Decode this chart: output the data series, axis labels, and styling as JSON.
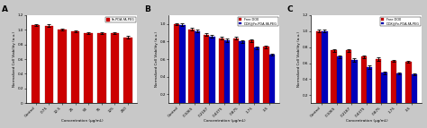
{
  "panel_A": {
    "label": "A",
    "categories": [
      "Control",
      "0.75",
      "12.5",
      "25",
      "50",
      "75",
      "125",
      "250"
    ],
    "values_red": [
      1.065,
      1.055,
      1.0,
      0.975,
      0.95,
      0.955,
      0.955,
      0.895
    ],
    "errors_red": [
      0.018,
      0.018,
      0.013,
      0.013,
      0.013,
      0.013,
      0.018,
      0.018
    ],
    "legend": [
      "Fe-PDA-FA-PEG"
    ],
    "ylabel": "Normalized Cell Viability (a.u.)",
    "xlabel": "Concentration (μg/mL)",
    "ylim": [
      0,
      1.2
    ],
    "yticks": [
      0.0,
      0.2,
      0.4,
      0.6,
      0.8,
      1.0,
      1.2
    ],
    "bar_color_red": "#CC0000"
  },
  "panel_B": {
    "label": "B",
    "categories": [
      "Control",
      "0.1065",
      "0.2187",
      "0.4375",
      "0.875",
      "1.75",
      "3.5"
    ],
    "values_red": [
      1.0,
      0.94,
      0.88,
      0.84,
      0.84,
      0.81,
      0.74
    ],
    "values_blue": [
      0.99,
      0.92,
      0.86,
      0.81,
      0.8,
      0.73,
      0.65
    ],
    "errors_red": [
      0.013,
      0.013,
      0.013,
      0.02,
      0.013,
      0.013,
      0.013
    ],
    "errors_blue": [
      0.013,
      0.013,
      0.013,
      0.02,
      0.013,
      0.013,
      0.013
    ],
    "legend": [
      "Free DOX",
      "DOX@Fe-PDA-FA-PEG"
    ],
    "ylabel": "Normalized Cell Viability (a.u.)",
    "xlabel": "Concentration (μg/mL)",
    "ylim": [
      0.1,
      1.1
    ],
    "yticks": [
      0.2,
      0.4,
      0.6,
      0.8,
      1.0
    ],
    "bar_color_red": "#CC0000",
    "bar_color_blue": "#0000BB"
  },
  "panel_C": {
    "label": "C",
    "categories": [
      "Control",
      "0.1065",
      "0.2187",
      "0.4375",
      "0.875",
      "1.75",
      "3.5"
    ],
    "values_red": [
      1.0,
      0.76,
      0.76,
      0.68,
      0.65,
      0.63,
      0.62
    ],
    "values_blue": [
      1.0,
      0.68,
      0.64,
      0.55,
      0.48,
      0.47,
      0.46
    ],
    "errors_red": [
      0.018,
      0.018,
      0.018,
      0.018,
      0.018,
      0.013,
      0.013
    ],
    "errors_blue": [
      0.018,
      0.018,
      0.018,
      0.018,
      0.018,
      0.013,
      0.013
    ],
    "legend": [
      "Free DOX",
      "DOX@Fe-PDA-FA-PEG"
    ],
    "ylabel": "Normalized Cell Viability (a.u.)",
    "xlabel": "Concentration (μg/mL)",
    "ylim": [
      0.1,
      1.2
    ],
    "yticks": [
      0.2,
      0.4,
      0.6,
      0.8,
      1.0,
      1.2
    ],
    "bar_color_red": "#CC0000",
    "bar_color_blue": "#0000BB"
  },
  "background_color": "#ffffff",
  "figure_facecolor": "#c8c8c8"
}
